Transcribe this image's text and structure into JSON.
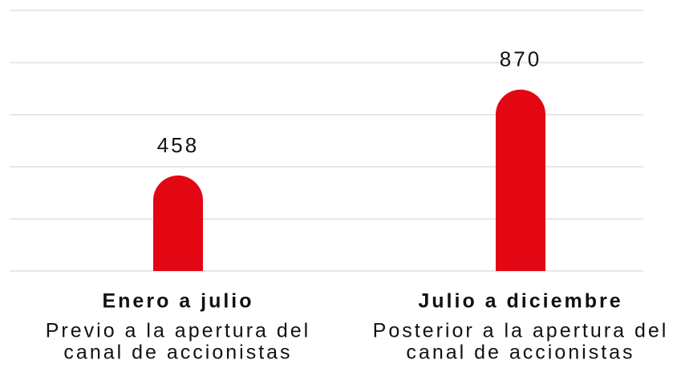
{
  "chart_data": {
    "type": "bar",
    "categories": [
      "Enero a julio",
      "Julio a diciembre"
    ],
    "descriptions": [
      [
        "Previo a la apertura del",
        "canal de accionistas"
      ],
      [
        "Posterior a la apertura del",
        "canal de accionistas"
      ]
    ],
    "values": [
      458,
      870
    ],
    "color": "#e30613",
    "ylim": [
      0,
      1250
    ],
    "yticks": [
      0,
      250,
      500,
      750,
      1000,
      1250
    ],
    "grid": true
  }
}
